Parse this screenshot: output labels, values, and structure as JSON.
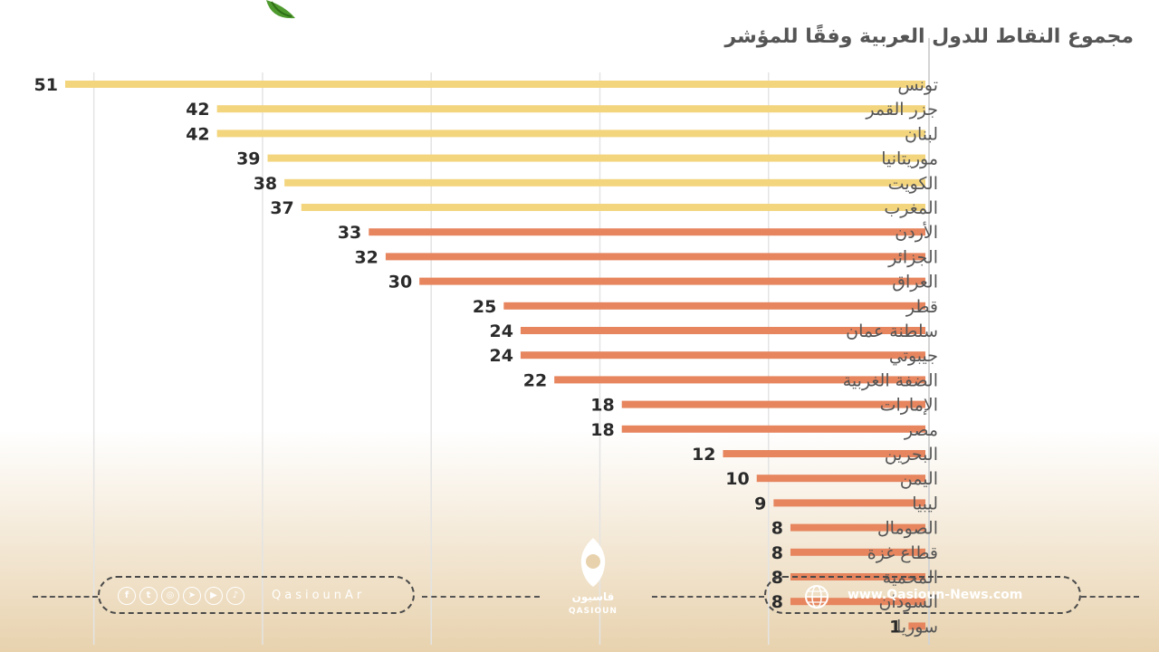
{
  "chart_data": {
    "type": "bar",
    "orientation": "horizontal",
    "title": "مجموع النقاط للدول العربية وفقًا للمؤشر",
    "categories": [
      "تونس",
      "جزر القمر",
      "لبنان",
      "موريتانيا",
      "الكويت",
      "المغرب",
      "الأردن",
      "الجزائر",
      "العراق",
      "قطر",
      "سلطنة عمان",
      "جيبوتي",
      "الضفة الغربية",
      "الإمارات",
      "مصر",
      "البحرين",
      "اليمن",
      "ليبيا",
      "الصومال",
      "قطاع غزة",
      "المحمية",
      "السودان",
      "سوريا"
    ],
    "values": [
      51,
      42,
      42,
      39,
      38,
      37,
      33,
      32,
      30,
      25,
      24,
      24,
      22,
      18,
      18,
      12,
      10,
      9,
      8,
      8,
      8,
      8,
      1
    ],
    "xlim": [
      0,
      52
    ],
    "grid": true,
    "colors": {
      "high": "#f3d57e",
      "low": "#e6855e"
    },
    "color_threshold": 35
  },
  "footer": {
    "social_handle": "QasiounAr",
    "website": "www.Qasioun-News.com",
    "logo_arabic": "قاسيون",
    "logo_latin": "QASIOUN",
    "social_icons": [
      "f",
      "t",
      "◎",
      "➤",
      "▶",
      "♪"
    ]
  }
}
